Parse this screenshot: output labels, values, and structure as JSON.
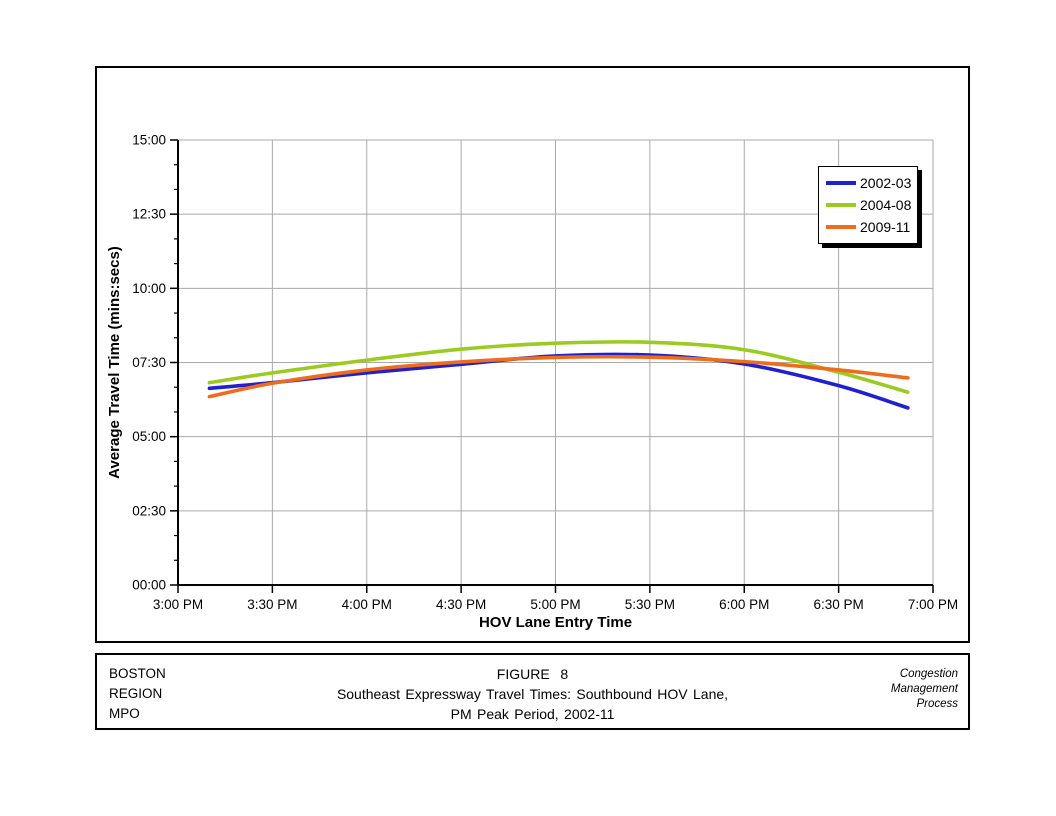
{
  "window": {
    "background": "#ffffff"
  },
  "chart_data": {
    "type": "line",
    "title": "",
    "xlabel": "HOV Lane Entry Time",
    "ylabel": "Average Travel Time (mins:secs)",
    "x_tick_labels": [
      "3:00 PM",
      "3:30 PM",
      "4:00 PM",
      "4:30 PM",
      "5:00 PM",
      "5:30 PM",
      "6:00 PM",
      "6:30 PM",
      "7:00 PM"
    ],
    "x_tick_minutes_after_3pm": [
      0,
      30,
      60,
      90,
      120,
      150,
      180,
      210,
      240
    ],
    "y_tick_labels": [
      "15:00",
      "12:30",
      "10:00",
      "07:30",
      "05:00",
      "02:30",
      "00:00"
    ],
    "y_tick_minutes": [
      15,
      12.5,
      10,
      7.5,
      5,
      2.5,
      0
    ],
    "ylim_minutes": [
      0,
      15
    ],
    "xlim_minutes_after_3pm": [
      0,
      240
    ],
    "y_major_unit_minutes": 2.5,
    "y_minor_ticks_per_major": 2,
    "grid": true,
    "legend_position": "upper-right-inside",
    "sample_times": [
      "3:10 PM",
      "3:30 PM",
      "4:00 PM",
      "4:30 PM",
      "5:00 PM",
      "5:30 PM",
      "6:00 PM",
      "6:30 PM",
      "6:52 PM"
    ],
    "sample_minutes_after_3pm": [
      10,
      30,
      60,
      90,
      120,
      150,
      180,
      210,
      232
    ],
    "series": [
      {
        "name": "2002-03",
        "color": "#2020CF",
        "values_minutes": [
          6.63,
          6.82,
          7.15,
          7.44,
          7.72,
          7.75,
          7.45,
          6.72,
          5.97
        ],
        "values_mmss": [
          "6:38",
          "6:49",
          "7:09",
          "7:26",
          "7:43",
          "7:45",
          "7:27",
          "6:43",
          "5:58"
        ]
      },
      {
        "name": "2004-08",
        "color": "#9BCB21",
        "values_minutes": [
          6.82,
          7.15,
          7.58,
          7.95,
          8.15,
          8.18,
          7.93,
          7.17,
          6.5
        ],
        "values_mmss": [
          "6:49",
          "7:09",
          "7:35",
          "7:57",
          "8:09",
          "8:11",
          "7:56",
          "7:10",
          "6:30"
        ]
      },
      {
        "name": "2009-11",
        "color": "#EE6C1C",
        "values_minutes": [
          6.35,
          6.8,
          7.25,
          7.52,
          7.67,
          7.68,
          7.53,
          7.25,
          6.98
        ],
        "values_mmss": [
          "6:21",
          "6:48",
          "7:15",
          "7:31",
          "7:40",
          "7:41",
          "7:32",
          "7:15",
          "6:59"
        ]
      }
    ],
    "colors": {
      "gridline": "#A9A9A9",
      "axis": "#000000"
    }
  },
  "footer": {
    "left_lines": [
      "BOSTON",
      "REGION",
      "MPO"
    ],
    "center_lines": [
      "FIGURE  8",
      "Southeast Expressway Travel Times: Southbound  HOV Lane,",
      "PM Peak Period, 2002-11"
    ],
    "right_lines": [
      "Congestion",
      "Management",
      "Process"
    ]
  }
}
